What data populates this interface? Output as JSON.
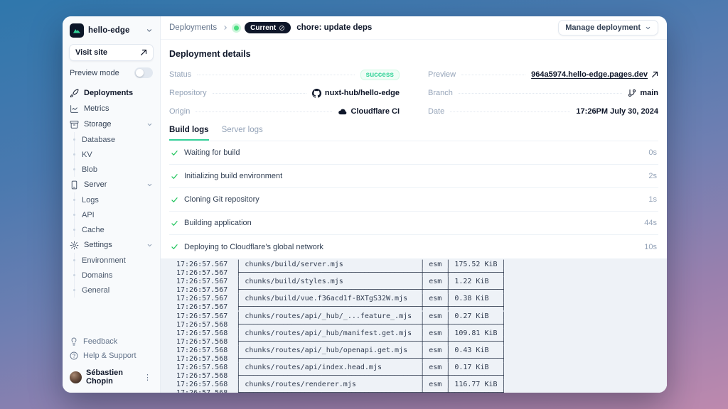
{
  "project": {
    "name": "hello-edge"
  },
  "sidebar": {
    "visit_site": "Visit site",
    "preview_mode": "Preview mode",
    "nav": [
      {
        "label": "Deployments",
        "icon": "rocket-icon"
      },
      {
        "label": "Metrics",
        "icon": "chart-icon"
      },
      {
        "label": "Storage",
        "icon": "storage-icon",
        "children": [
          "Database",
          "KV",
          "Blob"
        ]
      },
      {
        "label": "Server",
        "icon": "server-icon",
        "children": [
          "Logs",
          "API",
          "Cache"
        ]
      },
      {
        "label": "Settings",
        "icon": "gear-icon",
        "children": [
          "Environment",
          "Domains",
          "General"
        ]
      }
    ],
    "footer": [
      {
        "label": "Feedback",
        "icon": "lightbulb-icon"
      },
      {
        "label": "Help & Support",
        "icon": "help-icon"
      }
    ],
    "user": {
      "name": "Sébastien Chopin"
    }
  },
  "header": {
    "breadcrumb": "Deployments",
    "badge": "Current",
    "commit": "chore: update deps",
    "manage_button": "Manage deployment"
  },
  "details": {
    "title": "Deployment details",
    "status_label": "Status",
    "status_value": "success",
    "repository_label": "Repository",
    "repository_value": "nuxt-hub/hello-edge",
    "origin_label": "Origin",
    "origin_value": "Cloudflare CI",
    "preview_label": "Preview",
    "preview_value": "964a5974.hello-edge.pages.dev",
    "branch_label": "Branch",
    "branch_value": "main",
    "date_label": "Date",
    "date_value": "17:26PM July 30, 2024"
  },
  "tabs": [
    {
      "label": "Build logs"
    },
    {
      "label": "Server logs"
    }
  ],
  "steps": [
    {
      "label": "Waiting for build",
      "duration": "0s"
    },
    {
      "label": "Initializing build environment",
      "duration": "2s"
    },
    {
      "label": "Cloning Git repository",
      "duration": "1s"
    },
    {
      "label": "Building application",
      "duration": "44s"
    },
    {
      "label": "Deploying to Cloudflare's global network",
      "duration": "10s"
    }
  ],
  "build_log": {
    "path_col_width": 40,
    "size_col_width": 10,
    "entries": [
      {
        "row_time": "17:26:57.567",
        "sep_time": "17:26:57.567",
        "path": "chunks/build/server.mjs",
        "format": "esm",
        "size": "175.52 KiB"
      },
      {
        "row_time": "17:26:57.567",
        "sep_time": "17:26:57.567",
        "path": "chunks/build/styles.mjs",
        "format": "esm",
        "size": "1.22 KiB"
      },
      {
        "row_time": "17:26:57.567",
        "sep_time": "17:26:57.567",
        "path": "chunks/build/vue.f36acd1f-BXTgS32W.mjs",
        "format": "esm",
        "size": "0.38 KiB"
      },
      {
        "row_time": "17:26:57.567",
        "sep_time": "17:26:57.568",
        "path": "chunks/routes/api/_hub/_...feature_.mjs",
        "format": "esm",
        "size": "0.27 KiB"
      },
      {
        "row_time": "17:26:57.568",
        "sep_time": "17:26:57.568",
        "path": "chunks/routes/api/_hub/manifest.get.mjs",
        "format": "esm",
        "size": "109.81 KiB"
      },
      {
        "row_time": "17:26:57.568",
        "sep_time": "17:26:57.568",
        "path": "chunks/routes/api/_hub/openapi.get.mjs",
        "format": "esm",
        "size": "0.43 KiB"
      },
      {
        "row_time": "17:26:57.568",
        "sep_time": "17:26:57.568",
        "path": "chunks/routes/api/index.head.mjs",
        "format": "esm",
        "size": "0.17 KiB"
      },
      {
        "row_time": "17:26:57.568",
        "sep_time": "17:26:57.568",
        "path": "chunks/routes/renderer.mjs",
        "format": "esm",
        "size": "116.77 KiB"
      }
    ]
  },
  "colors": {
    "accent_green": "#34d399",
    "badge_dark": "#0f172a",
    "sidebar_bg": "#f8fafc",
    "log_bg": "#eef2f7"
  }
}
